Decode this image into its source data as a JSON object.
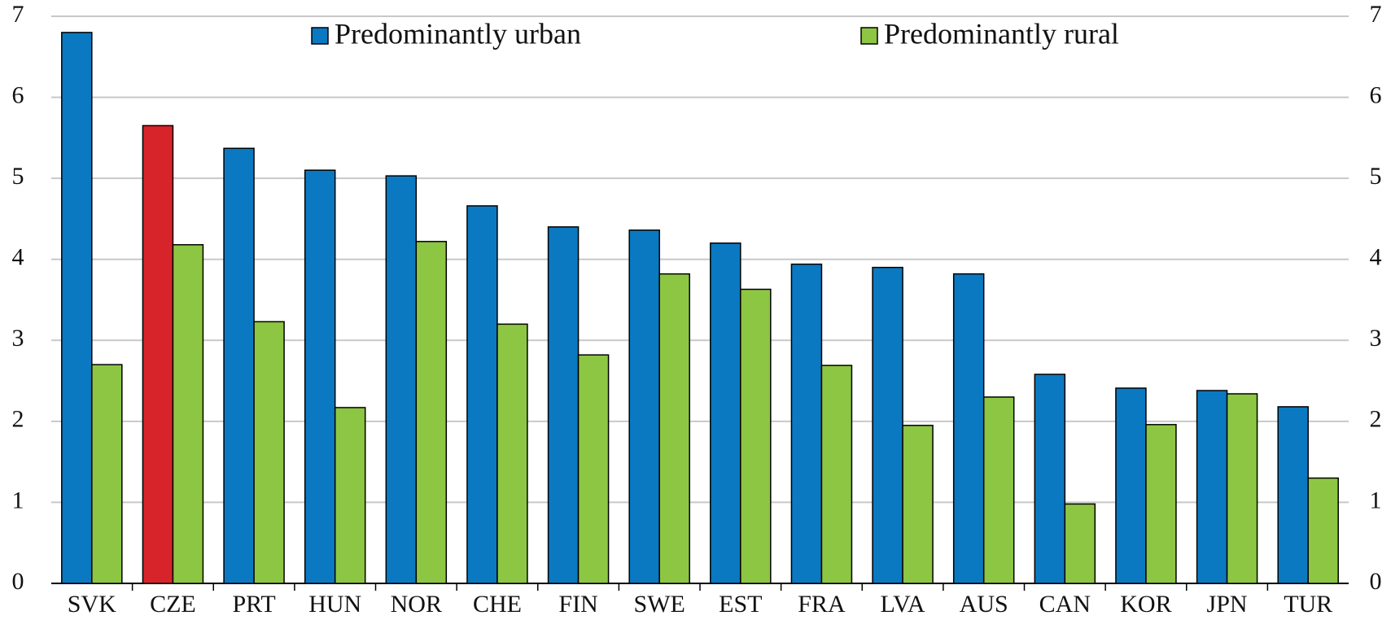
{
  "chart_data": {
    "type": "bar",
    "categories": [
      "SVK",
      "CZE",
      "PRT",
      "HUN",
      "NOR",
      "CHE",
      "FIN",
      "SWE",
      "EST",
      "FRA",
      "LVA",
      "AUS",
      "CAN",
      "KOR",
      "JPN",
      "TUR"
    ],
    "series": [
      {
        "name": "Predominantly urban",
        "color": "#0a79c1",
        "colors": [
          "#0a79c1",
          "#d7242b",
          "#0a79c1",
          "#0a79c1",
          "#0a79c1",
          "#0a79c1",
          "#0a79c1",
          "#0a79c1",
          "#0a79c1",
          "#0a79c1",
          "#0a79c1",
          "#0a79c1",
          "#0a79c1",
          "#0a79c1",
          "#0a79c1",
          "#0a79c1"
        ],
        "values": [
          6.8,
          5.65,
          5.37,
          5.1,
          5.03,
          4.66,
          4.4,
          4.36,
          4.2,
          3.94,
          3.9,
          3.82,
          2.58,
          2.41,
          2.38,
          2.18
        ]
      },
      {
        "name": "Predominantly rural",
        "color": "#8dc643",
        "values": [
          2.7,
          4.18,
          3.23,
          2.17,
          4.22,
          3.2,
          2.82,
          3.82,
          3.63,
          2.69,
          1.95,
          2.3,
          0.98,
          1.96,
          2.34,
          1.3
        ]
      }
    ],
    "ylim": [
      0,
      7
    ],
    "yticks": [
      0,
      1,
      2,
      3,
      4,
      5,
      6,
      7
    ],
    "y2lim": [
      0,
      7
    ],
    "y2ticks": [
      0,
      1,
      2,
      3,
      4,
      5,
      6,
      7
    ],
    "grid": true
  }
}
